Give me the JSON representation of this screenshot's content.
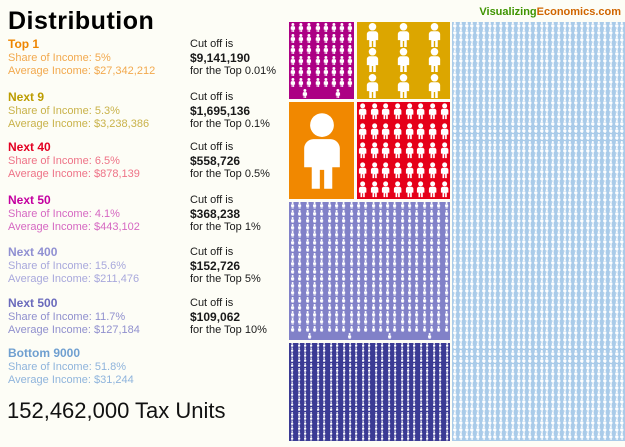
{
  "header": {
    "title": "Distribution",
    "site_green": "Visualizing",
    "site_orange": "Economics.com"
  },
  "labels": {
    "share": "Share of Income:",
    "average": "Average Income:",
    "cutoff_intro": "Cut off is",
    "for_top_prefix": "for the Top"
  },
  "footer": {
    "total": "152,462,000 Tax Units"
  },
  "groups": [
    {
      "id": "top1",
      "name": "Top 1",
      "share": "5%",
      "average": "$27,342,212",
      "cutoff": "$9,141,190",
      "top_pct": "0.01%",
      "label_color": "#ee8500",
      "line_color": "#f2a94e",
      "block_color": "#f18800",
      "icon_color": "#ffffff",
      "units": 1
    },
    {
      "id": "next9",
      "name": "Next 9",
      "share": "5.3%",
      "average": "$3,238,386",
      "cutoff": "$1,695,136",
      "top_pct": "0.1%",
      "label_color": "#bc9c00",
      "line_color": "#c9b24a",
      "block_color": "#dca600",
      "icon_color": "#ffffff",
      "units": 9
    },
    {
      "id": "next40",
      "name": "Next 40",
      "share": "6.5%",
      "average": "$878,139",
      "cutoff": "$558,726",
      "top_pct": "0.5%",
      "label_color": "#e30022",
      "line_color": "#ee7387",
      "block_color": "#e50019",
      "icon_color": "#ffffff",
      "units": 40
    },
    {
      "id": "next50",
      "name": "Next 50",
      "share": "4.1%",
      "average": "$443,102",
      "cutoff": "$368,238",
      "top_pct": "1%",
      "label_color": "#c400a0",
      "line_color": "#d668c2",
      "block_color": "#ac0084",
      "icon_color": "#ffffff",
      "units": 50
    },
    {
      "id": "next400",
      "name": "Next 400",
      "share": "15.6%",
      "average": "$211,476",
      "cutoff": "$152,726",
      "top_pct": "5%",
      "label_color": "#9090d2",
      "line_color": "#a8a8dc",
      "block_color": "#8181c8",
      "icon_color": "#ffffff",
      "units": 400
    },
    {
      "id": "next500",
      "name": "Next 500",
      "share": "11.7%",
      "average": "$127,184",
      "cutoff": "$109,062",
      "top_pct": "10%",
      "label_color": "#6a6abc",
      "line_color": "#9090ce",
      "block_color": "#3b3b94",
      "icon_color": "#ffffff",
      "units": 500
    },
    {
      "id": "bottom9000",
      "name": "Bottom 9000",
      "share": "51.8%",
      "average": "$31,244",
      "cutoff": null,
      "top_pct": null,
      "label_color": "#6f9fd0",
      "line_color": "#8fb4dc",
      "block_color": "#a9cbe9",
      "icon_color": "#ffffff",
      "units": 9000
    }
  ],
  "chart_data": {
    "type": "pictogram",
    "title": "Distribution",
    "categories": [
      "Top 1",
      "Next 9",
      "Next 40",
      "Next 50",
      "Next 400",
      "Next 500",
      "Bottom 9000"
    ],
    "series": [
      {
        "name": "Share of Income (%)",
        "values": [
          5,
          5.3,
          6.5,
          4.1,
          15.6,
          11.7,
          51.8
        ]
      },
      {
        "name": "Average Income (USD)",
        "values": [
          27342212,
          3238386,
          878139,
          443102,
          211476,
          127184,
          31244
        ]
      },
      {
        "name": "Cut off (USD)",
        "values": [
          9141190,
          1695136,
          558726,
          368238,
          152726,
          109062,
          null
        ]
      },
      {
        "name": "Cut off applies to",
        "values": [
          "Top 0.01%",
          "Top 0.1%",
          "Top 0.5%",
          "Top 1%",
          "Top 5%",
          "Top 10%",
          null
        ]
      },
      {
        "name": "Tax Units (per 10,000)",
        "values": [
          1,
          9,
          40,
          50,
          400,
          500,
          9000
        ]
      }
    ],
    "total_label": "152,462,000 Tax Units",
    "source": "VisualizingEconomics.com",
    "legend_position": "none",
    "grid": false
  }
}
